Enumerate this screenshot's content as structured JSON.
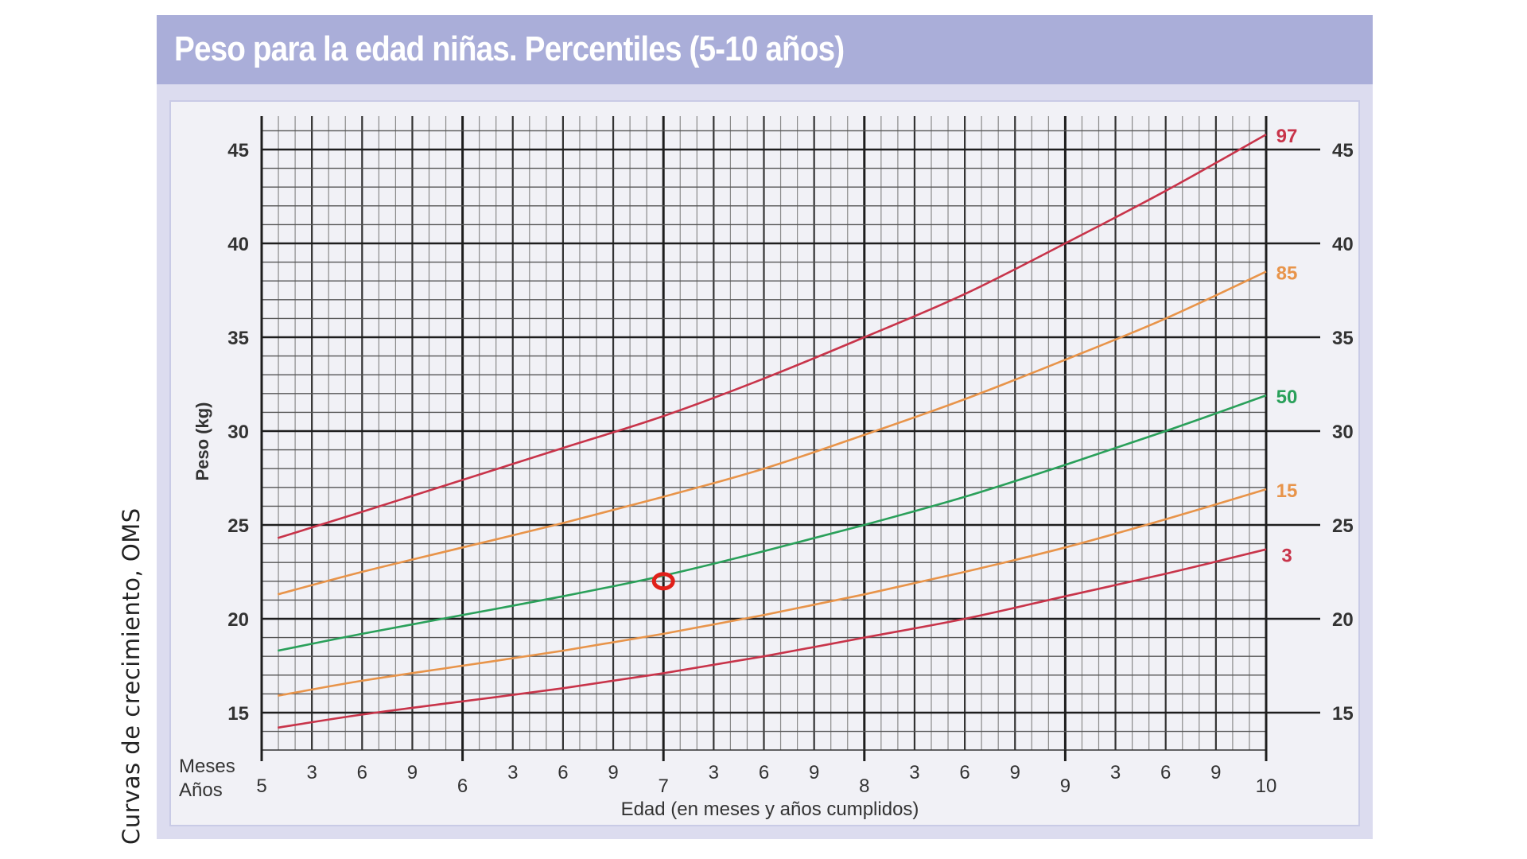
{
  "side_caption": "Curvas de crecimiento, OMS",
  "header": {
    "title": "Peso para la edad niñas. Percentiles (5-10 años)"
  },
  "chart_data": {
    "type": "line",
    "title": "Peso para la edad niñas. Percentiles (5-10 años)",
    "xlabel": "Edad (en meses y años cumplidos)",
    "ylabel": "Peso (kg)",
    "xlim": [
      5,
      10
    ],
    "ylim": [
      13,
      46.8
    ],
    "grid": true,
    "y_ticks": [
      15,
      20,
      25,
      30,
      35,
      40,
      45
    ],
    "x_year_ticks": [
      "5",
      "6",
      "7",
      "8",
      "9",
      "10"
    ],
    "x_month_ticks": [
      "3",
      "6",
      "9"
    ],
    "x_row_labels": {
      "months": "Meses",
      "years": "Años"
    },
    "x": [
      5.08,
      5.5,
      6.0,
      6.5,
      7.0,
      7.5,
      8.0,
      8.5,
      9.0,
      9.5,
      10.0
    ],
    "series": [
      {
        "name": "97",
        "color": "#c8344a",
        "values": [
          24.3,
          25.7,
          27.4,
          29.1,
          30.8,
          32.8,
          35.0,
          37.3,
          40.0,
          42.8,
          45.8
        ]
      },
      {
        "name": "85",
        "color": "#e8944a",
        "values": [
          21.3,
          22.5,
          23.8,
          25.1,
          26.5,
          28.0,
          29.8,
          31.7,
          33.8,
          36.0,
          38.5
        ]
      },
      {
        "name": "50",
        "color": "#2aa05a",
        "values": [
          18.3,
          19.2,
          20.2,
          21.2,
          22.3,
          23.6,
          25.0,
          26.5,
          28.2,
          30.0,
          31.9
        ]
      },
      {
        "name": "15",
        "color": "#e8944a",
        "values": [
          15.9,
          16.7,
          17.5,
          18.3,
          19.2,
          20.2,
          21.3,
          22.5,
          23.8,
          25.3,
          26.9
        ]
      },
      {
        "name": "3",
        "color": "#c8344a",
        "values": [
          14.2,
          14.9,
          15.6,
          16.3,
          17.1,
          18.0,
          19.0,
          20.0,
          21.2,
          22.4,
          23.7
        ]
      }
    ],
    "annotations": [
      {
        "type": "circle-marker",
        "x": 7.0,
        "y": 22.0,
        "color": "#e0201a"
      }
    ]
  }
}
